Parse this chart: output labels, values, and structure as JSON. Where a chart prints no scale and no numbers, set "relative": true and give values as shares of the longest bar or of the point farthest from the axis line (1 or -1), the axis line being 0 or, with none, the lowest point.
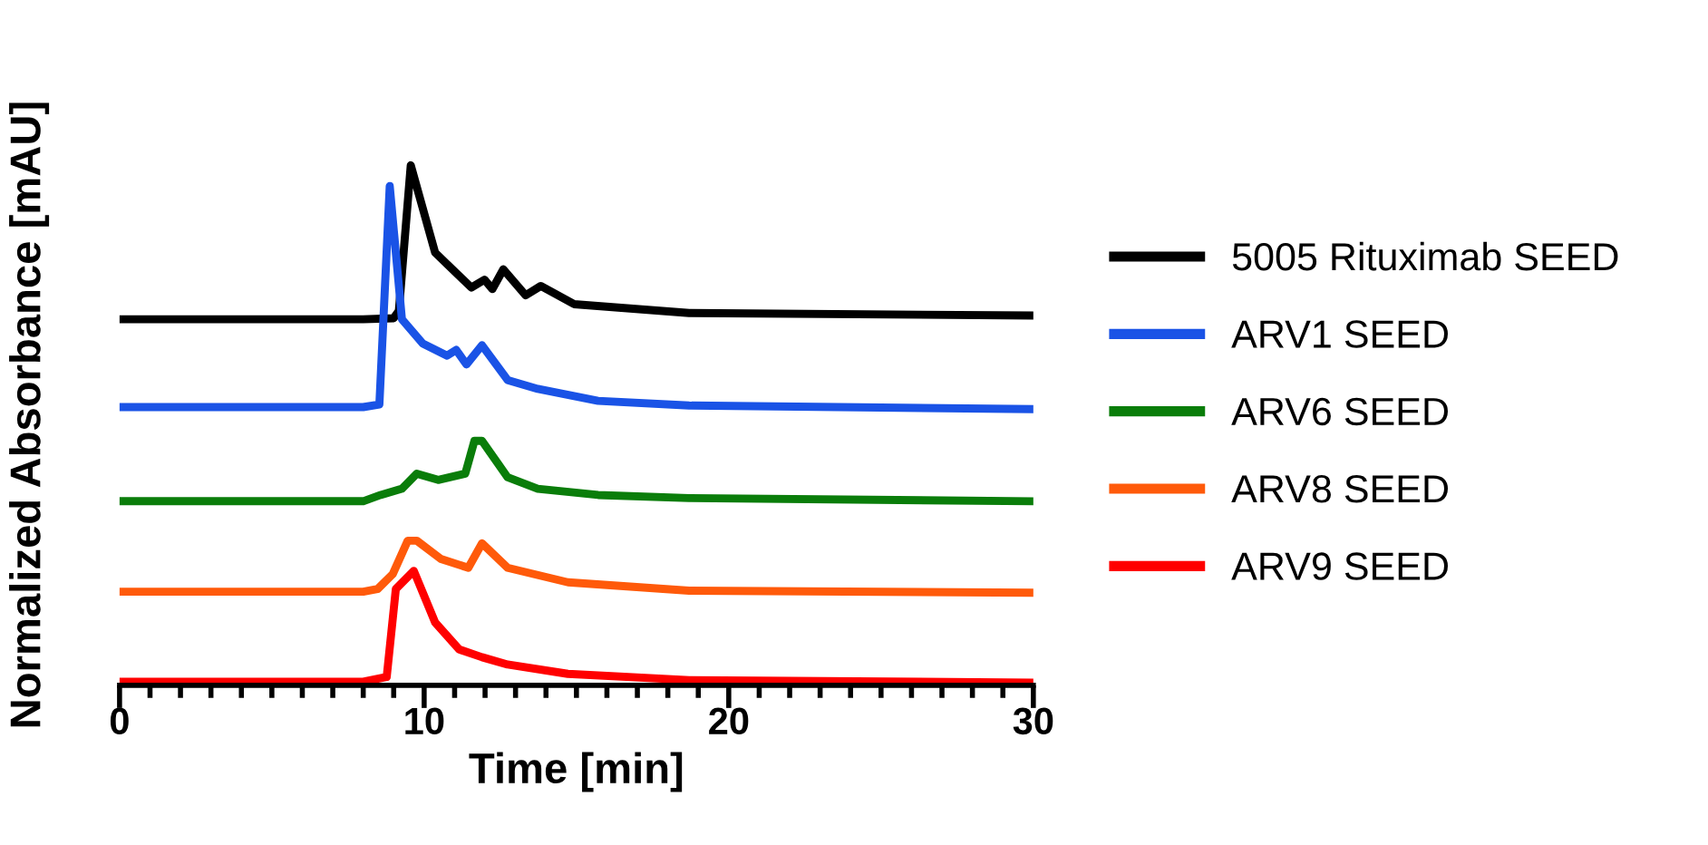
{
  "chart_data": {
    "type": "line",
    "relative": true,
    "xlabel": "Time [min]",
    "ylabel": "Normalized Absorbance [mAU]",
    "xlim": [
      0,
      30
    ],
    "xticks": [
      0,
      {
        "value": 1,
        "label": null
      },
      {
        "value": 2,
        "label": null
      },
      {
        "value": 3,
        "label": null
      },
      {
        "value": 4,
        "label": null
      },
      {
        "value": 5,
        "label": null
      },
      {
        "value": 6,
        "label": null
      },
      {
        "value": 7,
        "label": null
      },
      {
        "value": 8,
        "label": null
      },
      {
        "value": 9,
        "label": null
      },
      10,
      {
        "value": 11,
        "label": null
      },
      {
        "value": 12,
        "label": null
      },
      {
        "value": 13,
        "label": null
      },
      {
        "value": 14,
        "label": null
      },
      {
        "value": 15,
        "label": null
      },
      {
        "value": 16,
        "label": null
      },
      {
        "value": 17,
        "label": null
      },
      {
        "value": 18,
        "label": null
      },
      {
        "value": 19,
        "label": null
      },
      20,
      {
        "value": 21,
        "label": null
      },
      {
        "value": 22,
        "label": null
      },
      {
        "value": 23,
        "label": null
      },
      {
        "value": 24,
        "label": null
      },
      {
        "value": 25,
        "label": null
      },
      {
        "value": 26,
        "label": null
      },
      {
        "value": 27,
        "label": null
      },
      {
        "value": 28,
        "label": null
      },
      {
        "value": 29,
        "label": null
      },
      30
    ],
    "grid": false,
    "legend": "right",
    "marker": "none",
    "line_style": "solid",
    "series": [
      {
        "name": "5005 Rituximab SEED",
        "color": "#000000",
        "x": [
          0,
          8,
          9.0,
          9.17,
          9.56,
          10.36,
          11.55,
          11.98,
          12.24,
          12.6,
          13.33,
          13.83,
          14.92,
          18.7,
          30
        ],
        "values": [
          0.704,
          0.704,
          0.706,
          0.72,
          1.0,
          0.832,
          0.765,
          0.78,
          0.762,
          0.8,
          0.75,
          0.768,
          0.733,
          0.716,
          0.711
        ]
      },
      {
        "name": "ARV1 SEED",
        "color": "#1a53e6",
        "x": [
          0,
          8,
          8.53,
          8.87,
          9.27,
          9.96,
          10.75,
          11.05,
          11.39,
          11.9,
          12.74,
          13.73,
          15.71,
          18.7,
          30
        ],
        "values": [
          0.535,
          0.535,
          0.54,
          0.96,
          0.704,
          0.657,
          0.634,
          0.645,
          0.617,
          0.654,
          0.587,
          0.57,
          0.547,
          0.538,
          0.531
        ]
      },
      {
        "name": "ARV6 SEED",
        "color": "#0a7d0a",
        "x": [
          0,
          8,
          8.57,
          9.27,
          9.76,
          10.46,
          11.35,
          11.65,
          11.9,
          12.74,
          13.73,
          15.71,
          18.7,
          30
        ],
        "values": [
          0.354,
          0.354,
          0.366,
          0.378,
          0.407,
          0.395,
          0.407,
          0.47,
          0.47,
          0.4,
          0.378,
          0.366,
          0.36,
          0.354
        ]
      },
      {
        "name": "ARV8 SEED",
        "color": "#ff5a0a",
        "x": [
          0,
          8,
          8.47,
          8.97,
          9.46,
          9.76,
          10.55,
          11.45,
          11.9,
          12.74,
          14.72,
          18.7,
          30
        ],
        "values": [
          0.18,
          0.18,
          0.185,
          0.214,
          0.278,
          0.278,
          0.243,
          0.226,
          0.273,
          0.226,
          0.198,
          0.182,
          0.178
        ]
      },
      {
        "name": "ARV9 SEED",
        "color": "#ff0000",
        "x": [
          0,
          8,
          8.77,
          9.07,
          9.66,
          10.36,
          11.15,
          11.9,
          12.74,
          14.72,
          18.7,
          30
        ],
        "values": [
          0.007,
          0.007,
          0.016,
          0.185,
          0.22,
          0.121,
          0.069,
          0.054,
          0.04,
          0.022,
          0.01,
          0.005
        ]
      }
    ]
  }
}
